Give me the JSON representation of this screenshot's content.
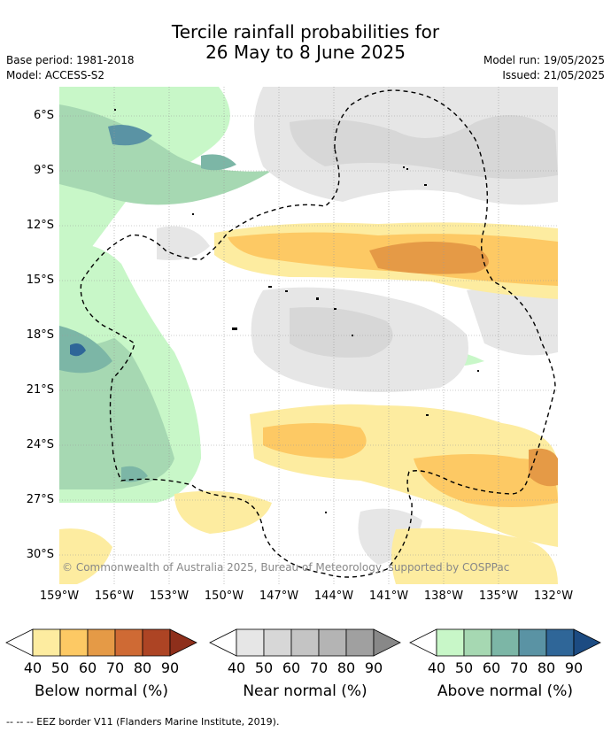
{
  "header": {
    "title_line1": "Tercile rainfall probabilities for",
    "title_line2": "26 May to 8 June 2025",
    "base_period": "Base period: 1981-2018",
    "model": "Model: ACCESS-S2",
    "model_run": "Model run: 19/05/2025",
    "issued": "Issued: 21/05/2025"
  },
  "map": {
    "lat_labels": [
      "6°S",
      "9°S",
      "12°S",
      "15°S",
      "18°S",
      "21°S",
      "24°S",
      "27°S",
      "30°S"
    ],
    "lon_labels": [
      "159°W",
      "156°W",
      "153°W",
      "150°W",
      "147°W",
      "144°W",
      "141°W",
      "138°W",
      "135°W",
      "132°W"
    ],
    "copyright": "© Commonwealth of Australia 2025, Bureau of Meteorology, supported by COSPPac"
  },
  "colorbars": [
    {
      "title": "Below normal (%)",
      "ticks": [
        "40",
        "50",
        "60",
        "70",
        "80",
        "90"
      ],
      "colors": [
        "#fdeca0",
        "#fdc964",
        "#e59a46",
        "#cf6a34",
        "#ad4424",
        "#8e2f1b"
      ]
    },
    {
      "title": "Near normal (%)",
      "ticks": [
        "40",
        "50",
        "60",
        "70",
        "80",
        "90"
      ],
      "colors": [
        "#e6e6e6",
        "#d7d7d7",
        "#c4c4c4",
        "#b4b4b4",
        "#a0a0a0",
        "#888888"
      ]
    },
    {
      "title": "Above normal (%)",
      "ticks": [
        "40",
        "50",
        "60",
        "70",
        "80",
        "90"
      ],
      "colors": [
        "#c8f7c8",
        "#a6d8b2",
        "#7cb6a6",
        "#5a93a4",
        "#2f6698",
        "#1c4b82"
      ]
    }
  ],
  "footer": {
    "eez_note": "--  --  -- EEZ border V11 (Flanders Marine Institute, 2019)."
  }
}
